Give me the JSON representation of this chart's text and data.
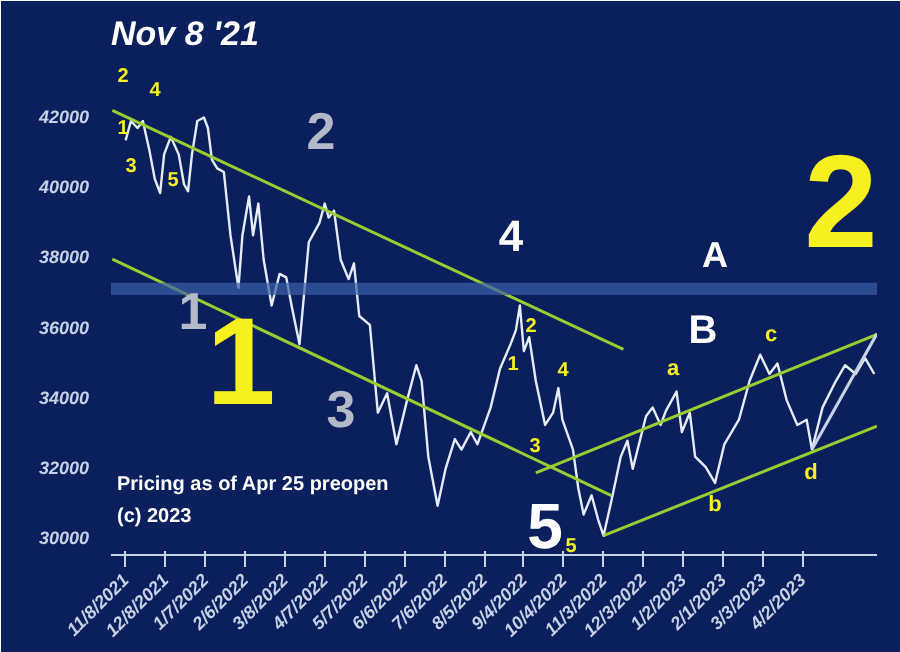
{
  "chart_data": {
    "type": "line",
    "title": "Nov 8 '21",
    "xlim": [
      "2021-10-28",
      "2023-05-28"
    ],
    "ylim": [
      29500,
      43500
    ],
    "yticks": [
      30000,
      32000,
      34000,
      36000,
      38000,
      40000,
      42000
    ],
    "xticks": [
      {
        "value": "2021-11-08",
        "label": "11/8/2021"
      },
      {
        "value": "2021-12-08",
        "label": "12/8/2021"
      },
      {
        "value": "2022-01-07",
        "label": "1/7/2022"
      },
      {
        "value": "2022-02-06",
        "label": "2/6/2022"
      },
      {
        "value": "2022-03-08",
        "label": "3/8/2022"
      },
      {
        "value": "2022-04-07",
        "label": "4/7/2022"
      },
      {
        "value": "2022-05-07",
        "label": "5/7/2022"
      },
      {
        "value": "2022-06-06",
        "label": "6/6/2022"
      },
      {
        "value": "2022-07-06",
        "label": "7/6/2022"
      },
      {
        "value": "2022-08-05",
        "label": "8/5/2022"
      },
      {
        "value": "2022-09-04",
        "label": "9/4/2022"
      },
      {
        "value": "2022-10-04",
        "label": "10/4/2022"
      },
      {
        "value": "2022-11-03",
        "label": "11/3/2022"
      },
      {
        "value": "2022-12-03",
        "label": "12/3/2022"
      },
      {
        "value": "2023-01-02",
        "label": "1/2/2023"
      },
      {
        "value": "2023-02-01",
        "label": "2/1/2023"
      },
      {
        "value": "2023-03-03",
        "label": "3/3/2023"
      },
      {
        "value": "2023-04-02",
        "label": "4/2/2023"
      }
    ],
    "grid": false,
    "marker": "none",
    "line_style": "solid",
    "series": [
      {
        "color": "#e6ecf5",
        "x": [
          "2021-11-08",
          "2021-11-12",
          "2021-11-17",
          "2021-11-21",
          "2021-11-26",
          "2021-11-30",
          "2021-12-04",
          "2021-12-07",
          "2021-12-12",
          "2021-12-18",
          "2021-12-22",
          "2021-12-25",
          "2021-12-28",
          "2022-01-01",
          "2022-01-06",
          "2022-01-09",
          "2022-01-12",
          "2022-01-16",
          "2022-01-21",
          "2022-01-26",
          "2022-02-01",
          "2022-02-04",
          "2022-02-09",
          "2022-02-12",
          "2022-02-16",
          "2022-02-20",
          "2022-02-26",
          "2022-03-04",
          "2022-03-09",
          "2022-03-13",
          "2022-03-19",
          "2022-03-26",
          "2022-04-03",
          "2022-04-07",
          "2022-04-10",
          "2022-04-14",
          "2022-04-19",
          "2022-04-25",
          "2022-04-29",
          "2022-05-03",
          "2022-05-11",
          "2022-05-14",
          "2022-05-17",
          "2022-05-24",
          "2022-05-31",
          "2022-06-08",
          "2022-06-15",
          "2022-06-19",
          "2022-06-24",
          "2022-07-01",
          "2022-07-07",
          "2022-07-14",
          "2022-07-19",
          "2022-07-26",
          "2022-07-31",
          "2022-08-10",
          "2022-08-17",
          "2022-08-25",
          "2022-08-29",
          "2022-09-01",
          "2022-09-04",
          "2022-09-08",
          "2022-09-13",
          "2022-09-20",
          "2022-09-26",
          "2022-09-30",
          "2022-10-03",
          "2022-10-11",
          "2022-10-15",
          "2022-10-19",
          "2022-10-25",
          "2022-10-30",
          "2022-11-03",
          "2022-11-09",
          "2022-11-16",
          "2022-11-21",
          "2022-11-25",
          "2022-12-05",
          "2022-12-10",
          "2022-12-16",
          "2022-12-20",
          "2022-12-28",
          "2023-01-01",
          "2023-01-07",
          "2023-01-11",
          "2023-01-19",
          "2023-01-26",
          "2023-02-02",
          "2023-02-13",
          "2023-02-21",
          "2023-03-01",
          "2023-03-08",
          "2023-03-14",
          "2023-03-21",
          "2023-03-29",
          "2023-04-05",
          "2023-04-09",
          "2023-04-17",
          "2023-04-27",
          "2023-05-04",
          "2023-05-12",
          "2023-05-19",
          "2023-05-26"
        ],
        "values": [
          41300,
          41850,
          41650,
          41850,
          41000,
          40200,
          39800,
          40900,
          41400,
          40900,
          40050,
          39850,
          40900,
          41850,
          41950,
          41650,
          40750,
          40500,
          40400,
          38600,
          37100,
          38600,
          39700,
          38600,
          39500,
          37900,
          36600,
          37500,
          37400,
          36600,
          35500,
          38400,
          38950,
          39500,
          39100,
          39300,
          37900,
          37350,
          37800,
          36300,
          36050,
          34800,
          33550,
          34100,
          32650,
          33900,
          34900,
          34450,
          32300,
          30900,
          31950,
          32800,
          32500,
          33000,
          32650,
          33700,
          34800,
          35500,
          35900,
          36600,
          35300,
          35700,
          34450,
          33200,
          33550,
          34250,
          33350,
          32500,
          31400,
          30650,
          31200,
          30500,
          30050,
          31050,
          32300,
          32750,
          31950,
          33450,
          33700,
          33200,
          33600,
          34150,
          33000,
          33550,
          32300,
          32000,
          31550,
          32650,
          33350,
          34450,
          35200,
          34650,
          34950,
          33900,
          33200,
          33350,
          32500,
          33700,
          34450,
          34900,
          34650,
          35100,
          34650
        ]
      },
      {
        "type": "line",
        "color": "#9acd32",
        "x": [
          "2021-10-29",
          "2022-11-18"
        ],
        "values": [
          42150,
          35350
        ]
      },
      {
        "type": "line",
        "color": "#9acd32",
        "x": [
          "2021-10-29",
          "2022-11-09"
        ],
        "values": [
          37920,
          31190
        ]
      },
      {
        "type": "line",
        "color": "#9acd32",
        "x": [
          "2022-09-13",
          "2023-05-28"
        ],
        "values": [
          31840,
          35780
        ]
      },
      {
        "type": "line",
        "color": "#9acd32",
        "x": [
          "2022-11-03",
          "2023-05-28"
        ],
        "values": [
          30050,
          33170
        ]
      },
      {
        "type": "line",
        "color": "#c8d2e6",
        "x": [
          "2023-04-09",
          "2023-05-28"
        ],
        "values": [
          32500,
          35800
        ]
      }
    ],
    "bands": [
      {
        "axis": "y",
        "from": 36900,
        "to": 37250,
        "color": "#3a5fa8"
      }
    ],
    "annotations": [
      "1",
      "2",
      "4",
      "3",
      "5",
      "2",
      "1",
      "3",
      "1",
      "4",
      "5",
      "2",
      "1",
      "4",
      "3",
      "5",
      "A",
      "B",
      "2",
      "a",
      "c",
      "b",
      "d",
      "Pricing as of Apr 25 preopen",
      "(c) 2023"
    ]
  }
}
